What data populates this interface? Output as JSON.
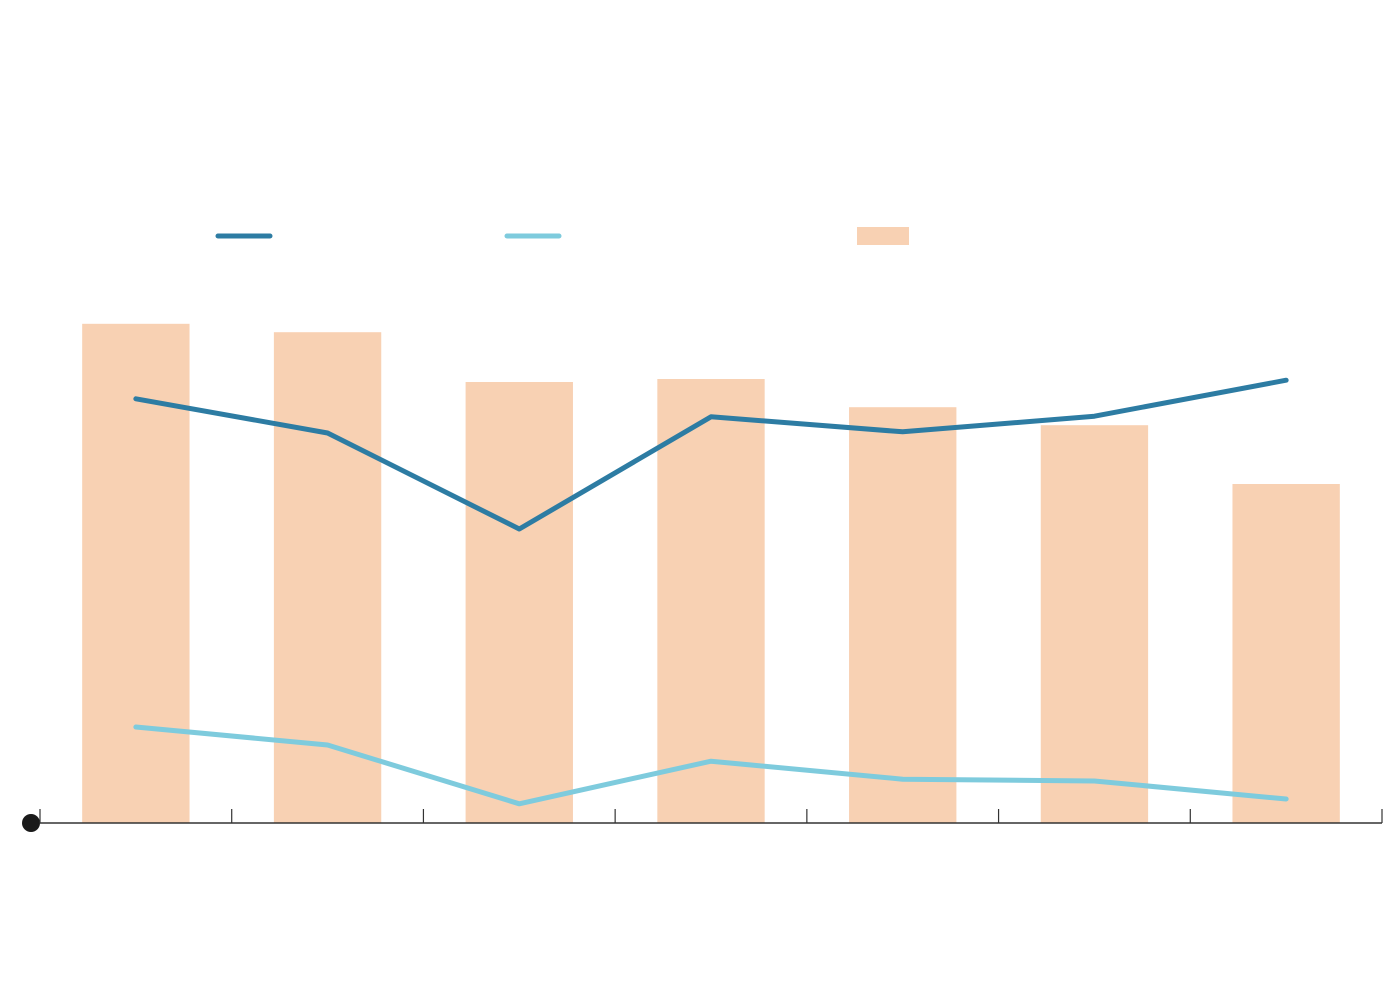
{
  "chart_data": {
    "type": "combo",
    "categories": [
      null,
      null,
      null,
      null,
      null,
      null,
      null
    ],
    "series": [
      {
        "type": "line",
        "color": "#2d7ca3",
        "values": [
          70.7,
          65,
          49,
          67.7,
          65.2,
          67.8,
          73.8
        ]
      },
      {
        "type": "line",
        "color": "#7ecbdd",
        "values": [
          16,
          13,
          3.2,
          10.3,
          7.3,
          7,
          4
        ]
      },
      {
        "type": "bar",
        "color": "#f8d1b3",
        "values": [
          83.2,
          81.8,
          73.5,
          74,
          69.3,
          66.3,
          56.5
        ]
      }
    ],
    "ylim": [
      0,
      100
    ],
    "legend": true
  }
}
